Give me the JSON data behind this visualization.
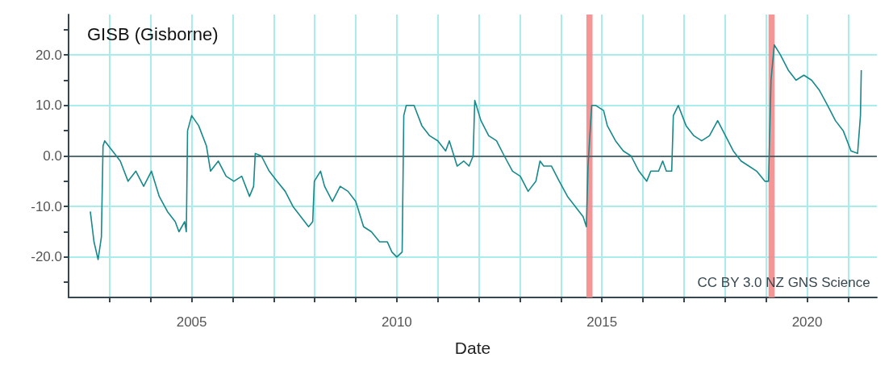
{
  "chart_data": {
    "type": "line",
    "title": "GISB (Gisborne)",
    "xlabel": "Date",
    "annotations": [
      "CC BY 3.0 NZ GNS Science"
    ],
    "grid": true,
    "marker": "none",
    "line_style": "solid",
    "xlim": [
      2002.0,
      2021.7
    ],
    "xticks": [
      {
        "value": 2003,
        "label": null
      },
      {
        "value": 2004,
        "label": null
      },
      2005,
      {
        "value": 2006,
        "label": null
      },
      {
        "value": 2007,
        "label": null
      },
      {
        "value": 2008,
        "label": null
      },
      {
        "value": 2009,
        "label": null
      },
      2010,
      {
        "value": 2011,
        "label": null
      },
      {
        "value": 2012,
        "label": null
      },
      {
        "value": 2013,
        "label": null
      },
      {
        "value": 2014,
        "label": null
      },
      2015,
      {
        "value": 2016,
        "label": null
      },
      {
        "value": 2017,
        "label": null
      },
      {
        "value": 2018,
        "label": null
      },
      {
        "value": 2019,
        "label": null
      },
      2020,
      {
        "value": 2021,
        "label": null
      }
    ],
    "ylim": [
      -28,
      28
    ],
    "yticks": [
      {
        "value": -25,
        "label": null
      },
      {
        "value": -20,
        "label": "-20.0"
      },
      {
        "value": -15,
        "label": null
      },
      {
        "value": -10,
        "label": "-10.0"
      },
      {
        "value": -5,
        "label": null
      },
      {
        "value": 0,
        "label": "0.0"
      },
      {
        "value": 5,
        "label": null
      },
      {
        "value": 10,
        "label": "10.0"
      },
      {
        "value": 15,
        "label": null
      },
      {
        "value": 20,
        "label": "20.0"
      },
      {
        "value": 25,
        "label": null
      }
    ],
    "ref_lines": [
      {
        "axis": "y",
        "value": 0,
        "color": "#37474f"
      }
    ],
    "bands": [
      {
        "axis": "x",
        "from": 2014.62,
        "to": 2014.77,
        "color": "#f48a8a"
      },
      {
        "axis": "x",
        "from": 2019.06,
        "to": 2019.21,
        "color": "#f48a8a"
      }
    ],
    "series": [
      {
        "color": "#17898a",
        "x": [
          2002.53,
          2002.62,
          2002.72,
          2002.8,
          2002.84,
          2002.88,
          2003.07,
          2003.26,
          2003.45,
          2003.64,
          2003.83,
          2004.02,
          2004.21,
          2004.41,
          2004.6,
          2004.69,
          2004.83,
          2004.87,
          2004.9,
          2005.0,
          2005.17,
          2005.36,
          2005.46,
          2005.65,
          2005.84,
          2006.03,
          2006.22,
          2006.41,
          2006.51,
          2006.55,
          2006.7,
          2006.89,
          2007.08,
          2007.28,
          2007.47,
          2007.66,
          2007.85,
          2007.95,
          2007.99,
          2008.14,
          2008.24,
          2008.43,
          2008.62,
          2008.81,
          2009.0,
          2009.19,
          2009.38,
          2009.58,
          2009.77,
          2009.88,
          2010.0,
          2010.13,
          2010.17,
          2010.23,
          2010.42,
          2010.61,
          2010.8,
          2011.0,
          2011.19,
          2011.28,
          2011.47,
          2011.63,
          2011.76,
          2011.86,
          2011.9,
          2012.05,
          2012.24,
          2012.43,
          2012.62,
          2012.82,
          2013.01,
          2013.2,
          2013.39,
          2013.49,
          2013.58,
          2013.77,
          2013.96,
          2014.16,
          2014.35,
          2014.54,
          2014.62,
          2014.66,
          2014.75,
          2014.85,
          2015.04,
          2015.13,
          2015.33,
          2015.52,
          2015.71,
          2015.9,
          2016.09,
          2016.19,
          2016.38,
          2016.48,
          2016.57,
          2016.7,
          2016.74,
          2016.86,
          2017.05,
          2017.24,
          2017.43,
          2017.62,
          2017.82,
          2018.01,
          2018.2,
          2018.39,
          2018.58,
          2018.77,
          2018.97,
          2019.06,
          2019.12,
          2019.2,
          2019.35,
          2019.54,
          2019.73,
          2019.92,
          2020.11,
          2020.3,
          2020.5,
          2020.69,
          2020.88,
          2021.07,
          2021.23,
          2021.3,
          2021.32
        ],
        "values": [
          -11,
          -17,
          -20.5,
          -16,
          2,
          3,
          1,
          -1,
          -5,
          -3,
          -6,
          -3,
          -8,
          -11,
          -13,
          -15,
          -13,
          -15,
          5,
          8,
          6,
          2,
          -3,
          -1,
          -4,
          -5,
          -4,
          -8,
          -6,
          0.5,
          0,
          -3,
          -5,
          -7,
          -10,
          -12,
          -14,
          -13,
          -5,
          -3,
          -6,
          -9,
          -6,
          -7,
          -9,
          -14,
          -15,
          -17,
          -17,
          -19,
          -20,
          -19,
          8,
          10,
          10,
          6,
          4,
          3,
          1,
          3,
          -2,
          -1,
          -2,
          0,
          11,
          7,
          4,
          3,
          0,
          -3,
          -4,
          -7,
          -5,
          -1,
          -2,
          -2,
          -5,
          -8,
          -10,
          -12,
          -14,
          -2,
          10,
          10,
          9,
          6,
          3,
          1,
          0,
          -3,
          -5,
          -3,
          -3,
          -1,
          -3,
          -3,
          8,
          10,
          6,
          4,
          3,
          4,
          7,
          4,
          1,
          -1,
          -2,
          -3,
          -5,
          -5,
          15,
          22,
          20,
          17,
          15,
          16,
          15,
          13,
          10,
          7,
          5,
          1,
          0.5,
          8,
          17
        ]
      }
    ]
  }
}
